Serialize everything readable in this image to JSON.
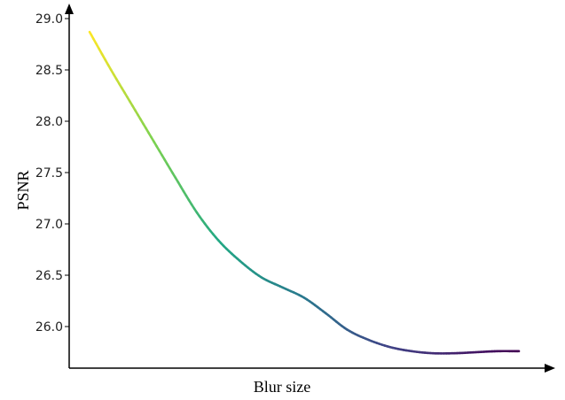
{
  "chart_data": {
    "type": "line",
    "xlabel": "Blur size",
    "ylabel": "PSNR",
    "ylim": [
      25.6,
      29.15
    ],
    "yticks": [
      "29.0",
      "28.5",
      "28.0",
      "27.5",
      "27.0",
      "26.5",
      "26.0"
    ],
    "grid": false,
    "colormap": "viridis",
    "series": [
      {
        "x": [
          0,
          0.05,
          0.1,
          0.15,
          0.2,
          0.25,
          0.3,
          0.35,
          0.4,
          0.45,
          0.5,
          0.55,
          0.6,
          0.65,
          0.7,
          0.75,
          0.8,
          0.85,
          0.9,
          0.95,
          1.0
        ],
        "y": [
          28.87,
          28.5,
          28.15,
          27.8,
          27.45,
          27.11,
          26.84,
          26.64,
          26.48,
          26.38,
          26.28,
          26.13,
          25.97,
          25.87,
          25.8,
          25.76,
          25.74,
          25.74,
          25.75,
          25.76,
          25.76
        ]
      }
    ]
  }
}
